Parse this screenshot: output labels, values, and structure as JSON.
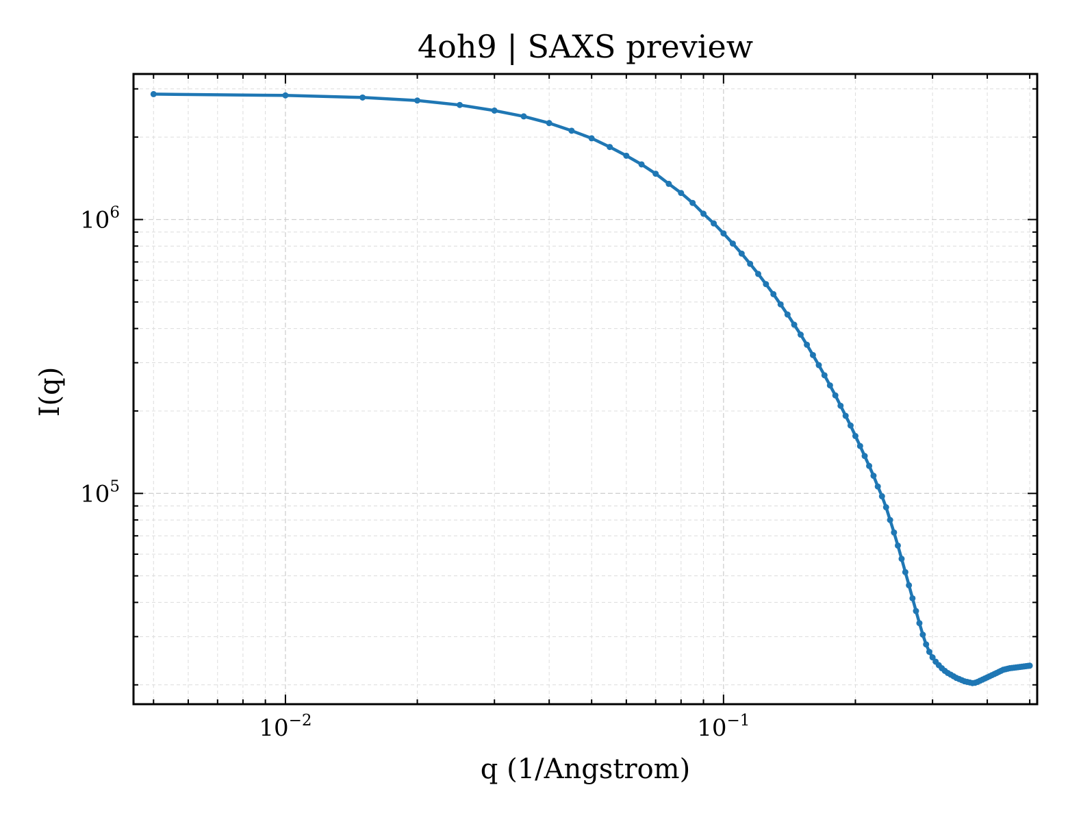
{
  "chart_data": {
    "type": "line",
    "title": "4oh9 | SAXS preview",
    "xlabel": "q (1/Angstrom)",
    "ylabel": "I(q)",
    "xscale": "log",
    "yscale": "log",
    "xlim": [
      0.0045,
      0.52
    ],
    "ylim": [
      17000,
      3400000
    ],
    "grid": true,
    "legend": "none",
    "line_color": "#1f77b4",
    "marker": "dot",
    "x_ticks": [
      {
        "base": "10",
        "exp": "−2",
        "value": 0.01
      },
      {
        "base": "10",
        "exp": "−1",
        "value": 0.1
      }
    ],
    "y_ticks": [
      {
        "base": "10",
        "exp": "5",
        "value": 100000
      },
      {
        "base": "10",
        "exp": "6",
        "value": 1000000
      }
    ],
    "series": [
      {
        "x": [
          0.005,
          0.01,
          0.015,
          0.02,
          0.025,
          0.03,
          0.035,
          0.04,
          0.045,
          0.05,
          0.055,
          0.06,
          0.065,
          0.07,
          0.075,
          0.08,
          0.085,
          0.09,
          0.095,
          0.1,
          0.105,
          0.11,
          0.115,
          0.12,
          0.125,
          0.13,
          0.135,
          0.14,
          0.145,
          0.15,
          0.155,
          0.16,
          0.165,
          0.17,
          0.175,
          0.18,
          0.185,
          0.19,
          0.195,
          0.2,
          0.205,
          0.21,
          0.215,
          0.22,
          0.225,
          0.23,
          0.235,
          0.24,
          0.245,
          0.25,
          0.255,
          0.26,
          0.265,
          0.27,
          0.275,
          0.28,
          0.285,
          0.29,
          0.295,
          0.3,
          0.305,
          0.31,
          0.315,
          0.32,
          0.325,
          0.33,
          0.335,
          0.34,
          0.345,
          0.35,
          0.355,
          0.36,
          0.365,
          0.37,
          0.375,
          0.38,
          0.385,
          0.39,
          0.395,
          0.4,
          0.405,
          0.41,
          0.415,
          0.42,
          0.425,
          0.43,
          0.435,
          0.44,
          0.445,
          0.45,
          0.455,
          0.46,
          0.465,
          0.47,
          0.475,
          0.48,
          0.485,
          0.49,
          0.495,
          0.5
        ],
        "y": [
          2870000,
          2840000,
          2790000,
          2720000,
          2620000,
          2500000,
          2380000,
          2250000,
          2110000,
          1980000,
          1840000,
          1710000,
          1590000,
          1470000,
          1350000,
          1250000,
          1150000,
          1050000,
          968000,
          890000,
          817000,
          751000,
          689000,
          633000,
          581000,
          534000,
          490000,
          450000,
          413000,
          380000,
          349000,
          320000,
          294000,
          270000,
          248000,
          228000,
          209000,
          192000,
          177000,
          162000,
          149000,
          137000,
          126000,
          116000,
          106000,
          97600,
          89000,
          80000,
          72000,
          64500,
          57700,
          51600,
          46200,
          41400,
          37200,
          33600,
          30500,
          28100,
          26400,
          25200,
          24300,
          23600,
          23000,
          22500,
          22100,
          21800,
          21500,
          21200,
          21000,
          20800,
          20600,
          20500,
          20400,
          20300,
          20350,
          20500,
          20700,
          20900,
          21100,
          21300,
          21500,
          21700,
          21900,
          22100,
          22300,
          22500,
          22700,
          22800,
          22900,
          23000,
          23050,
          23100,
          23150,
          23200,
          23250,
          23300,
          23350,
          23400,
          23450,
          23500
        ]
      }
    ]
  }
}
